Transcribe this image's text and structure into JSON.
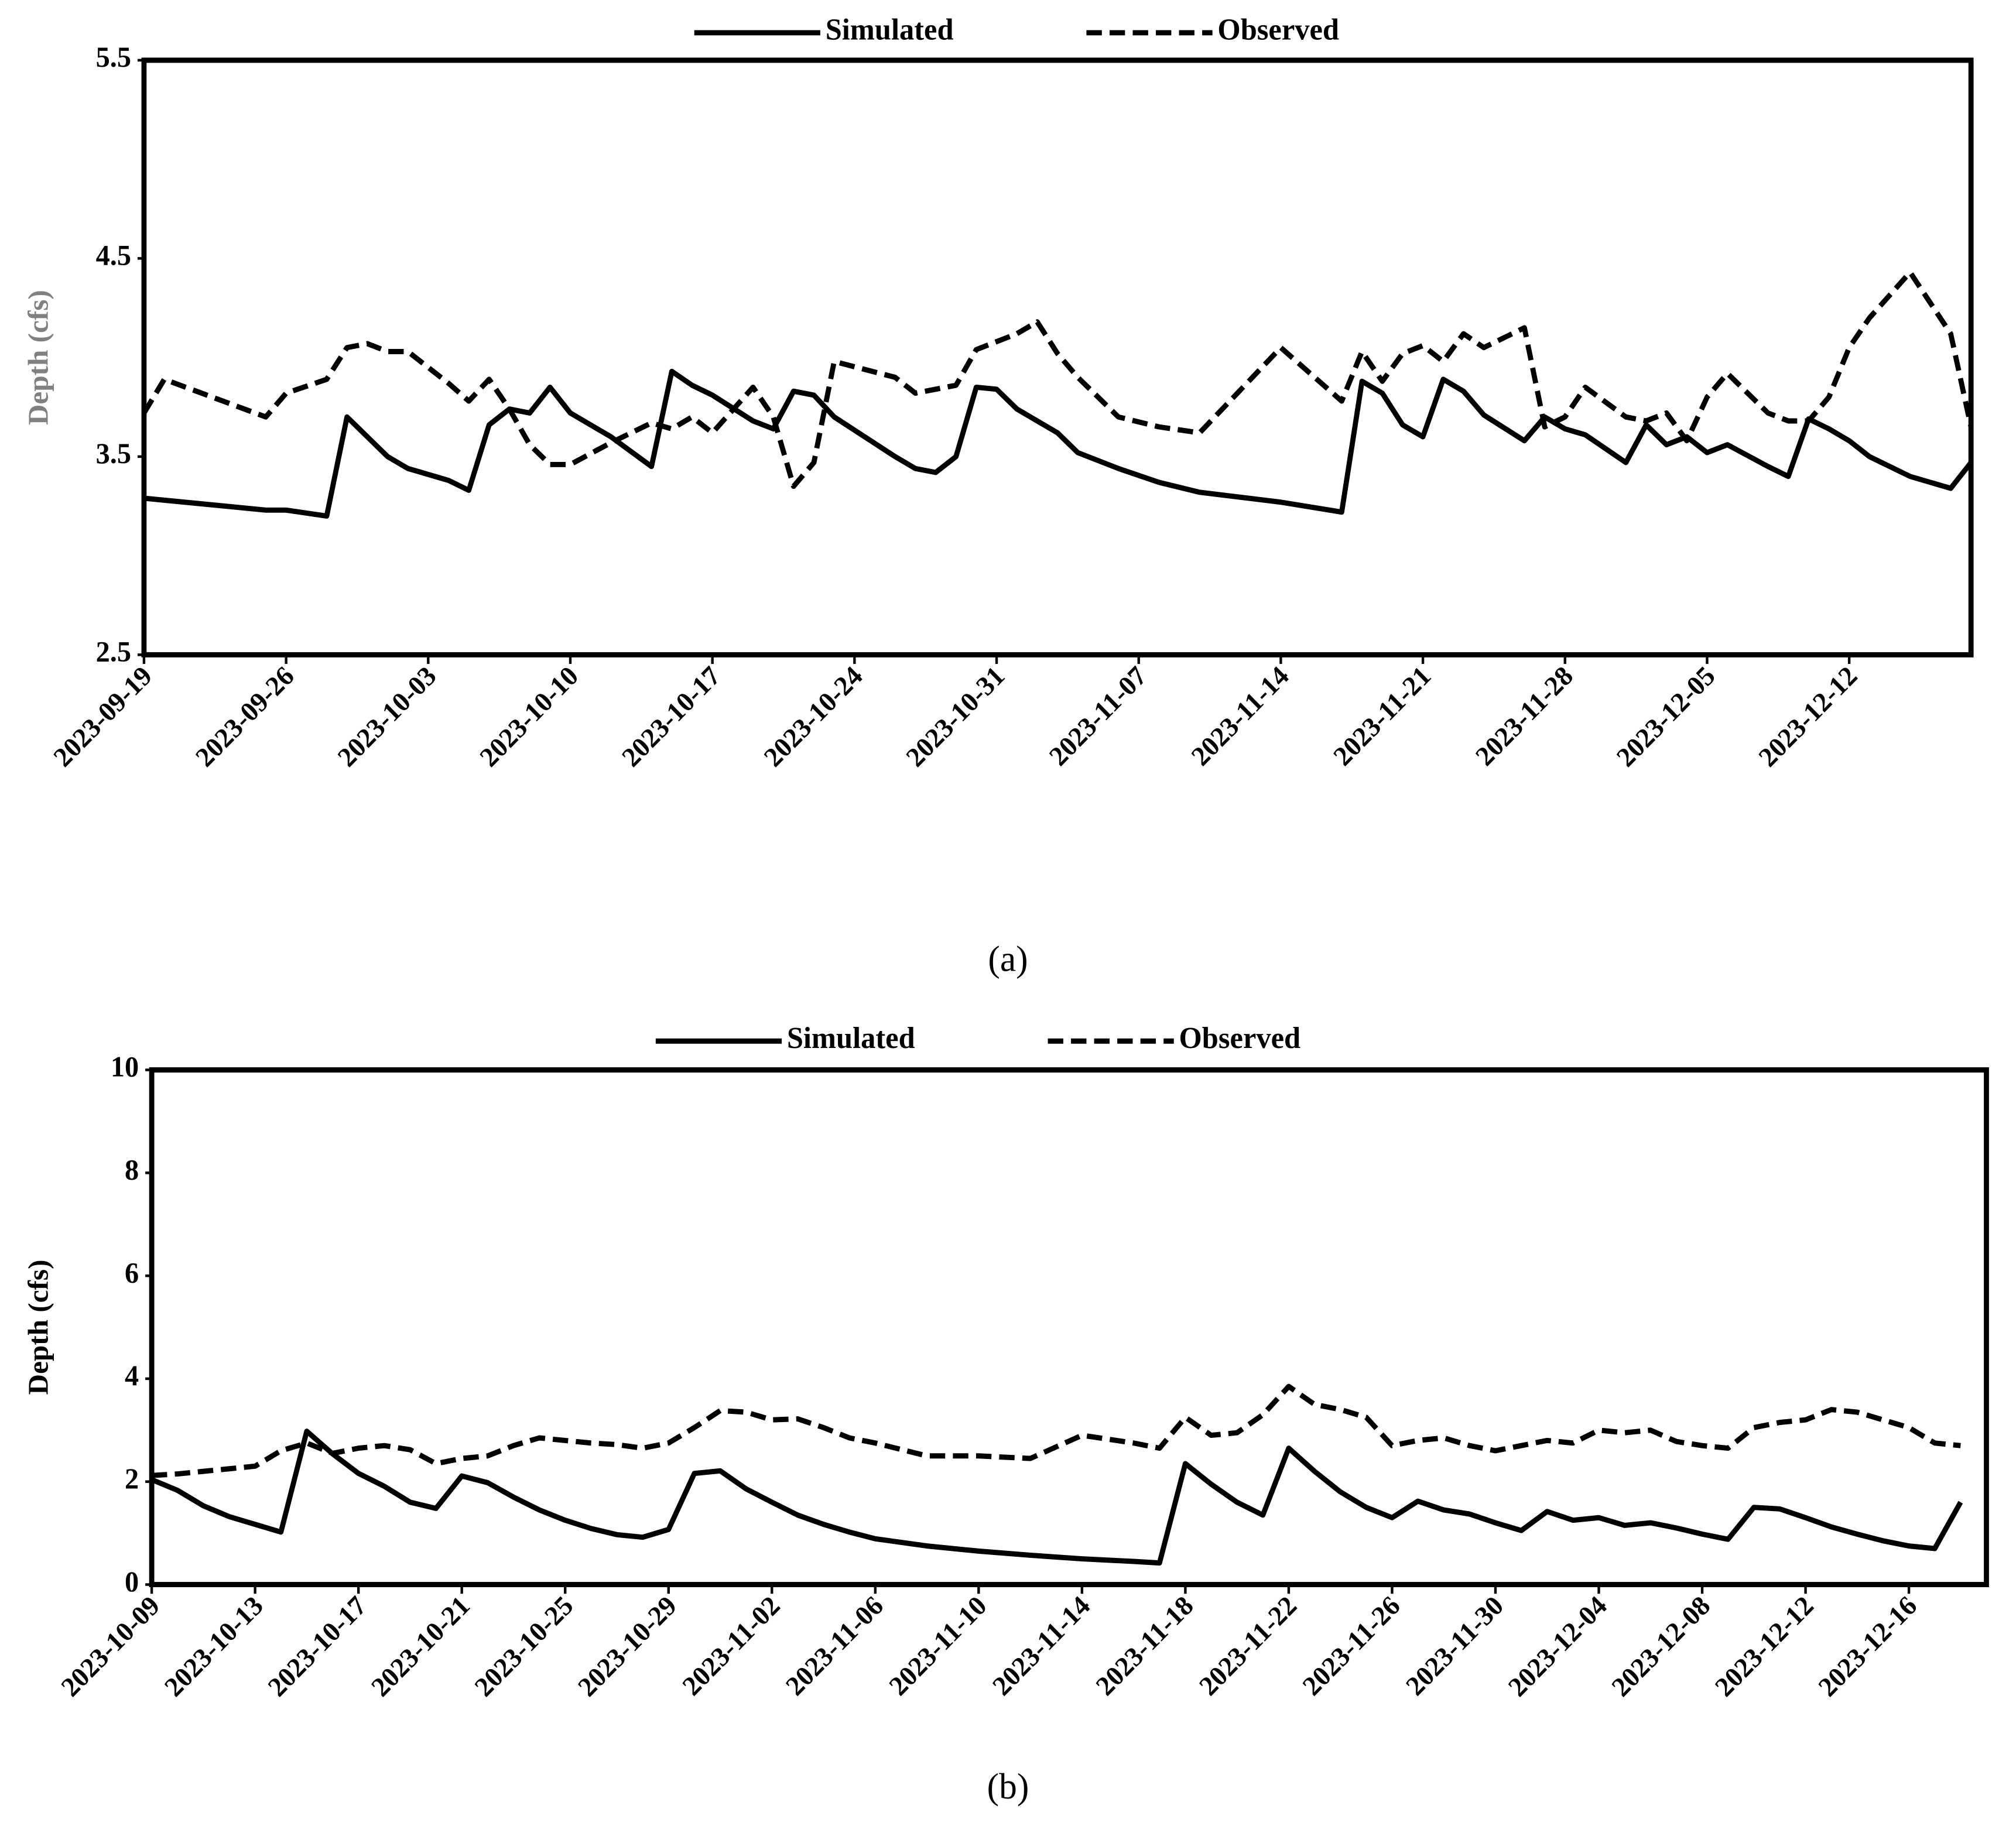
{
  "chart_data": [
    {
      "type": "line",
      "caption": "(a)",
      "y_label": "Depth (cfs)",
      "y_label_color": "#808080",
      "x": [
        "2023-09-19",
        "2023-09-20",
        "2023-09-25",
        "2023-09-26",
        "2023-09-28",
        "2023-09-29",
        "2023-09-30",
        "2023-10-01",
        "2023-10-02",
        "2023-10-04",
        "2023-10-05",
        "2023-10-06",
        "2023-10-07",
        "2023-10-08",
        "2023-10-09",
        "2023-10-10",
        "2023-10-12",
        "2023-10-14",
        "2023-10-15",
        "2023-10-16",
        "2023-10-17",
        "2023-10-19",
        "2023-10-20",
        "2023-10-21",
        "2023-10-22",
        "2023-10-23",
        "2023-10-26",
        "2023-10-27",
        "2023-10-28",
        "2023-10-29",
        "2023-10-30",
        "2023-10-31",
        "2023-11-01",
        "2023-11-02",
        "2023-11-03",
        "2023-11-04",
        "2023-11-06",
        "2023-11-08",
        "2023-11-10",
        "2023-11-14",
        "2023-11-17",
        "2023-11-18",
        "2023-11-19",
        "2023-11-20",
        "2023-11-21",
        "2023-11-22",
        "2023-11-23",
        "2023-11-24",
        "2023-11-26",
        "2023-11-27",
        "2023-11-28",
        "2023-11-29",
        "2023-12-01",
        "2023-12-02",
        "2023-12-03",
        "2023-12-04",
        "2023-12-05",
        "2023-12-06",
        "2023-12-08",
        "2023-12-09",
        "2023-12-10",
        "2023-12-11",
        "2023-12-12",
        "2023-12-13",
        "2023-12-15",
        "2023-12-17",
        "2023-12-18"
      ],
      "series": [
        {
          "name": "Simulated",
          "color": "#000000",
          "line_style": "solid",
          "values": [
            3.29,
            3.28,
            3.23,
            3.23,
            3.2,
            3.7,
            3.6,
            3.5,
            3.44,
            3.38,
            3.33,
            3.66,
            3.74,
            3.72,
            3.85,
            3.72,
            3.6,
            3.45,
            3.93,
            3.86,
            3.81,
            3.68,
            3.64,
            3.83,
            3.81,
            3.7,
            3.5,
            3.44,
            3.42,
            3.5,
            3.85,
            3.84,
            3.74,
            3.68,
            3.62,
            3.52,
            3.44,
            3.37,
            3.32,
            3.27,
            3.22,
            3.88,
            3.82,
            3.66,
            3.6,
            3.89,
            3.83,
            3.71,
            3.58,
            3.7,
            3.64,
            3.61,
            3.47,
            3.66,
            3.56,
            3.6,
            3.52,
            3.56,
            3.45,
            3.4,
            3.69,
            3.64,
            3.58,
            3.5,
            3.4,
            3.34,
            3.47
          ]
        },
        {
          "name": "Observed",
          "color": "#000000",
          "line_style": "dashed",
          "values": [
            3.72,
            3.89,
            3.7,
            3.82,
            3.89,
            4.05,
            4.07,
            4.03,
            4.03,
            3.87,
            3.78,
            3.89,
            3.74,
            3.56,
            3.46,
            3.46,
            3.57,
            3.67,
            3.64,
            3.7,
            3.62,
            3.85,
            3.7,
            3.35,
            3.47,
            3.98,
            3.9,
            3.82,
            3.84,
            3.86,
            4.04,
            4.08,
            4.12,
            4.18,
            4.02,
            3.9,
            3.7,
            3.65,
            3.62,
            4.05,
            3.78,
            4.03,
            3.88,
            4.02,
            4.06,
            3.98,
            4.12,
            4.05,
            4.15,
            3.65,
            3.7,
            3.85,
            3.7,
            3.68,
            3.72,
            3.58,
            3.8,
            3.92,
            3.72,
            3.68,
            3.68,
            3.8,
            4.05,
            4.2,
            4.43,
            4.12,
            3.65
          ]
        }
      ],
      "xlim": [
        "2023-09-19",
        "2023-12-18"
      ],
      "xticks": [
        "2023-09-19",
        "2023-09-26",
        "2023-10-03",
        "2023-10-10",
        "2023-10-17",
        "2023-10-24",
        "2023-10-31",
        "2023-11-07",
        "2023-11-14",
        "2023-11-21",
        "2023-11-28",
        "2023-12-05",
        "2023-12-12"
      ],
      "ylim": [
        2.5,
        5.5
      ],
      "yticks": [
        2.5,
        3.5,
        4.5,
        5.5
      ],
      "legend": "top"
    },
    {
      "type": "line",
      "caption": "(b)",
      "y_label": "Depth (cfs)",
      "y_label_color": "#000000",
      "x": [
        "2023-10-09",
        "2023-10-10",
        "2023-10-11",
        "2023-10-12",
        "2023-10-13",
        "2023-10-14",
        "2023-10-15",
        "2023-10-16",
        "2023-10-17",
        "2023-10-18",
        "2023-10-19",
        "2023-10-20",
        "2023-10-21",
        "2023-10-22",
        "2023-10-23",
        "2023-10-24",
        "2023-10-25",
        "2023-10-26",
        "2023-10-27",
        "2023-10-28",
        "2023-10-29",
        "2023-10-30",
        "2023-10-31",
        "2023-11-01",
        "2023-11-02",
        "2023-11-03",
        "2023-11-04",
        "2023-11-05",
        "2023-11-06",
        "2023-11-08",
        "2023-11-10",
        "2023-11-12",
        "2023-11-14",
        "2023-11-16",
        "2023-11-17",
        "2023-11-18",
        "2023-11-19",
        "2023-11-20",
        "2023-11-21",
        "2023-11-22",
        "2023-11-23",
        "2023-11-24",
        "2023-11-25",
        "2023-11-26",
        "2023-11-27",
        "2023-11-28",
        "2023-11-29",
        "2023-11-30",
        "2023-12-01",
        "2023-12-02",
        "2023-12-03",
        "2023-12-04",
        "2023-12-05",
        "2023-12-06",
        "2023-12-07",
        "2023-12-08",
        "2023-12-09",
        "2023-12-10",
        "2023-12-11",
        "2023-12-12",
        "2023-12-13",
        "2023-12-14",
        "2023-12-15",
        "2023-12-16",
        "2023-12-17",
        "2023-12-18"
      ],
      "series": [
        {
          "name": "Simulated",
          "color": "#000000",
          "line_style": "solid",
          "values": [
            2.04,
            1.83,
            1.53,
            1.32,
            1.17,
            1.02,
            2.98,
            2.54,
            2.16,
            1.91,
            1.6,
            1.48,
            2.11,
            1.98,
            1.7,
            1.45,
            1.25,
            1.09,
            0.97,
            0.92,
            1.07,
            2.16,
            2.21,
            1.86,
            1.6,
            1.35,
            1.17,
            1.02,
            0.89,
            0.75,
            0.65,
            0.57,
            0.5,
            0.45,
            0.42,
            2.35,
            1.95,
            1.6,
            1.35,
            2.65,
            2.2,
            1.8,
            1.5,
            1.3,
            1.62,
            1.45,
            1.37,
            1.2,
            1.05,
            1.42,
            1.25,
            1.3,
            1.15,
            1.2,
            1.1,
            0.98,
            0.88,
            1.5,
            1.47,
            1.3,
            1.12,
            0.98,
            0.85,
            0.75,
            0.7,
            1.6
          ]
        },
        {
          "name": "Observed",
          "color": "#000000",
          "line_style": "dashed",
          "values": [
            2.12,
            2.15,
            2.2,
            2.25,
            2.3,
            2.6,
            2.75,
            2.55,
            2.65,
            2.7,
            2.62,
            2.35,
            2.45,
            2.5,
            2.7,
            2.85,
            2.8,
            2.75,
            2.72,
            2.65,
            2.75,
            3.05,
            3.38,
            3.35,
            3.2,
            3.22,
            3.05,
            2.85,
            2.75,
            2.5,
            2.5,
            2.45,
            2.9,
            2.75,
            2.65,
            3.25,
            2.9,
            2.95,
            3.3,
            3.85,
            3.5,
            3.4,
            3.25,
            2.7,
            2.8,
            2.85,
            2.7,
            2.6,
            2.7,
            2.8,
            2.75,
            3.0,
            2.95,
            3.0,
            2.78,
            2.7,
            2.65,
            3.05,
            3.15,
            3.2,
            3.4,
            3.35,
            3.2,
            3.05,
            2.75,
            2.7
          ]
        }
      ],
      "xlim": [
        "2023-10-09",
        "2023-12-19"
      ],
      "xticks": [
        "2023-10-09",
        "2023-10-13",
        "2023-10-17",
        "2023-10-21",
        "2023-10-25",
        "2023-10-29",
        "2023-11-02",
        "2023-11-06",
        "2023-11-10",
        "2023-11-14",
        "2023-11-18",
        "2023-11-22",
        "2023-11-26",
        "2023-11-30",
        "2023-12-04",
        "2023-12-08",
        "2023-12-12",
        "2023-12-16"
      ],
      "ylim": [
        0,
        10
      ],
      "yticks": [
        0,
        2,
        4,
        6,
        8,
        10
      ],
      "legend": "top"
    }
  ]
}
